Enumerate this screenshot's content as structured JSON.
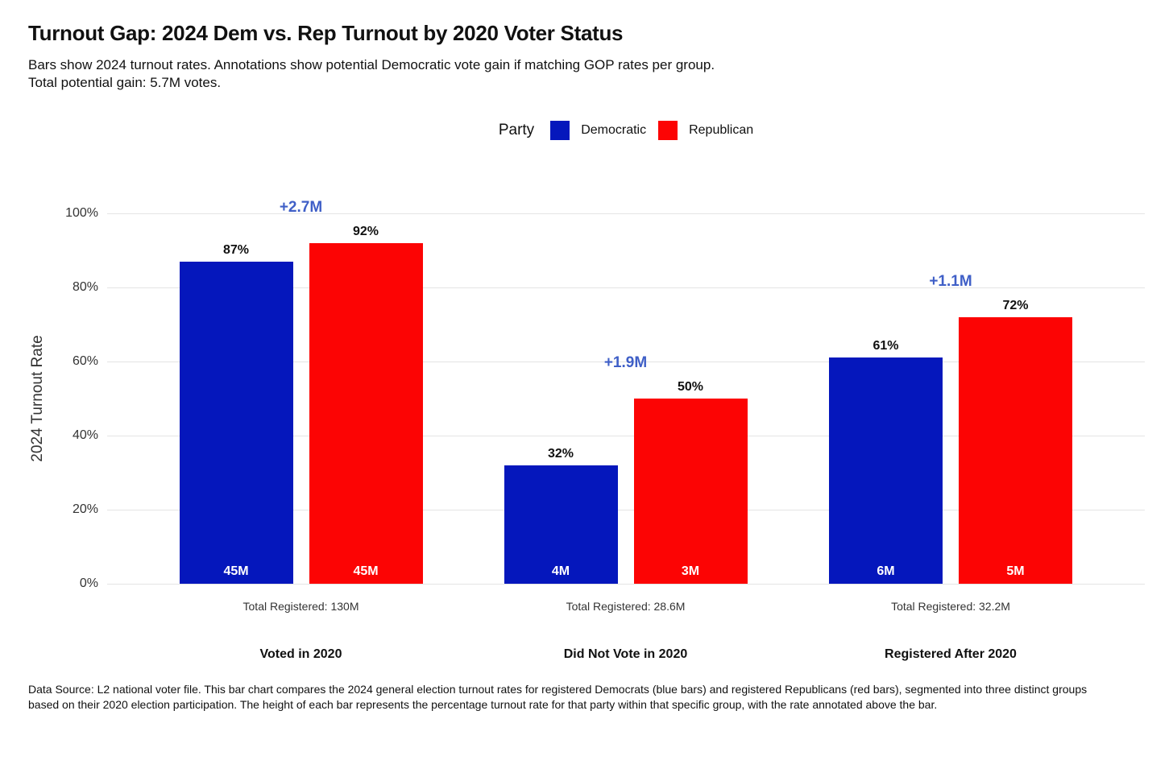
{
  "chart_data": {
    "type": "bar",
    "title": "Turnout Gap: 2024 Dem vs. Rep Turnout by 2020 Voter Status",
    "subtitle_lines": [
      "Bars show 2024 turnout rates. Annotations show potential Democratic vote gain if matching GOP rates per group.",
      "Total potential gain: 5.7M votes."
    ],
    "legend": {
      "title": "Party",
      "position": "top-center"
    },
    "categories": [
      "Voted in 2020",
      "Did Not Vote in 2020",
      "Registered After 2020"
    ],
    "series": [
      {
        "name": "Democratic",
        "color": "#0517BC",
        "values": [
          87,
          32,
          61
        ],
        "bar_count_labels": [
          "45M",
          "4M",
          "6M"
        ]
      },
      {
        "name": "Republican",
        "color": "#FC0404",
        "values": [
          92,
          50,
          72
        ],
        "bar_count_labels": [
          "45M",
          "3M",
          "5M"
        ]
      }
    ],
    "gain_annotations": {
      "color": "#3F5FC7",
      "values": [
        "+2.7M",
        "+1.9M",
        "+1.1M"
      ]
    },
    "total_registered_labels": [
      "Total Registered: 130M",
      "Total Registered: 28.6M",
      "Total Registered: 32.2M"
    ],
    "ylabel": "2024 Turnout Rate",
    "yticks": [
      {
        "value": 0,
        "label": "0%"
      },
      {
        "value": 20,
        "label": "20%"
      },
      {
        "value": 40,
        "label": "40%"
      },
      {
        "value": 60,
        "label": "60%"
      },
      {
        "value": 80,
        "label": "80%"
      },
      {
        "value": 100,
        "label": "100%"
      }
    ],
    "ylim": [
      0,
      100
    ],
    "grid": true,
    "value_suffix": "%",
    "gridline_color": "#e4e4e4"
  },
  "footer": {
    "text": "Data Source: L2 national voter file. This bar chart compares the 2024 general election turnout rates for registered Democrats (blue bars) and registered Republicans (red bars), segmented into three distinct groups based on their 2020 election participation. The height of each bar represents the percentage turnout rate for that party within that specific group, with the rate annotated above the bar."
  }
}
